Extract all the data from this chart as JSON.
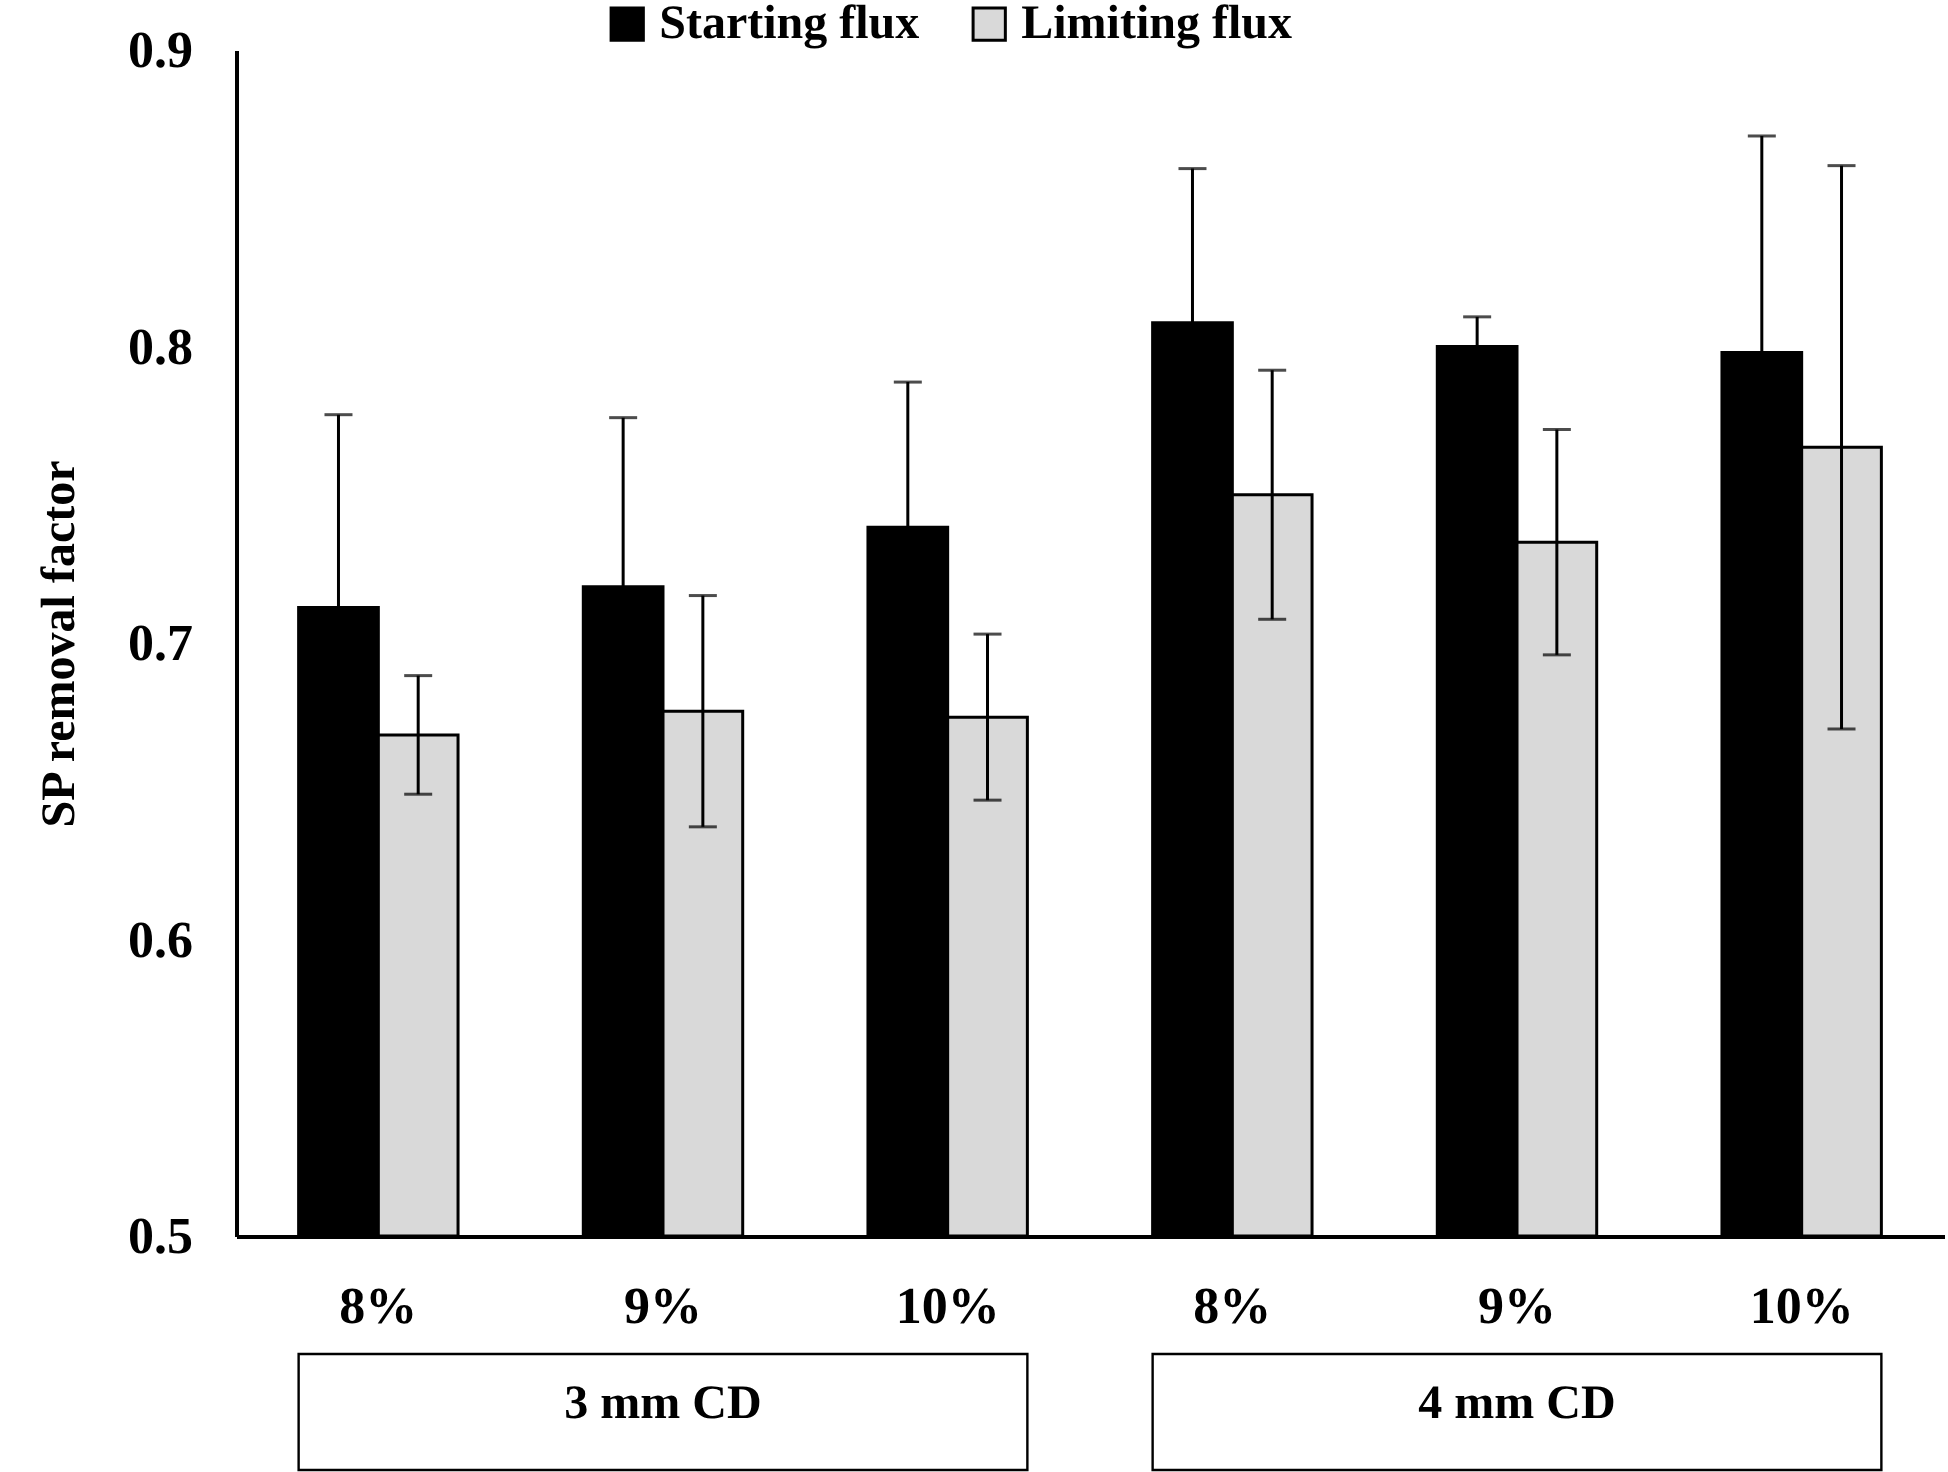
{
  "chart_data": {
    "type": "bar",
    "ylabel": "SP removal factor",
    "categories": [
      "8%",
      "9%",
      "10%",
      "8%",
      "9%",
      "10%"
    ],
    "series": [
      {
        "name": "Starting flux",
        "color": "#000000",
        "values": [
          0.712,
          0.719,
          0.739,
          0.808,
          0.8,
          0.798
        ],
        "errors": [
          0.065,
          0.057,
          0.049,
          0.052,
          0.01,
          0.073
        ]
      },
      {
        "name": "Limiting flux",
        "color": "#d9d9d9",
        "values": [
          0.669,
          0.677,
          0.675,
          0.75,
          0.734,
          0.766
        ],
        "errors": [
          0.02,
          0.039,
          0.028,
          0.042,
          0.038,
          0.095
        ]
      }
    ],
    "ylim": [
      0.5,
      0.9
    ],
    "yticks": [
      0.5,
      0.6,
      0.7,
      0.8,
      0.9
    ],
    "legend": "top",
    "annotations": [
      "3 mm CD",
      "4 mm CD"
    ]
  }
}
